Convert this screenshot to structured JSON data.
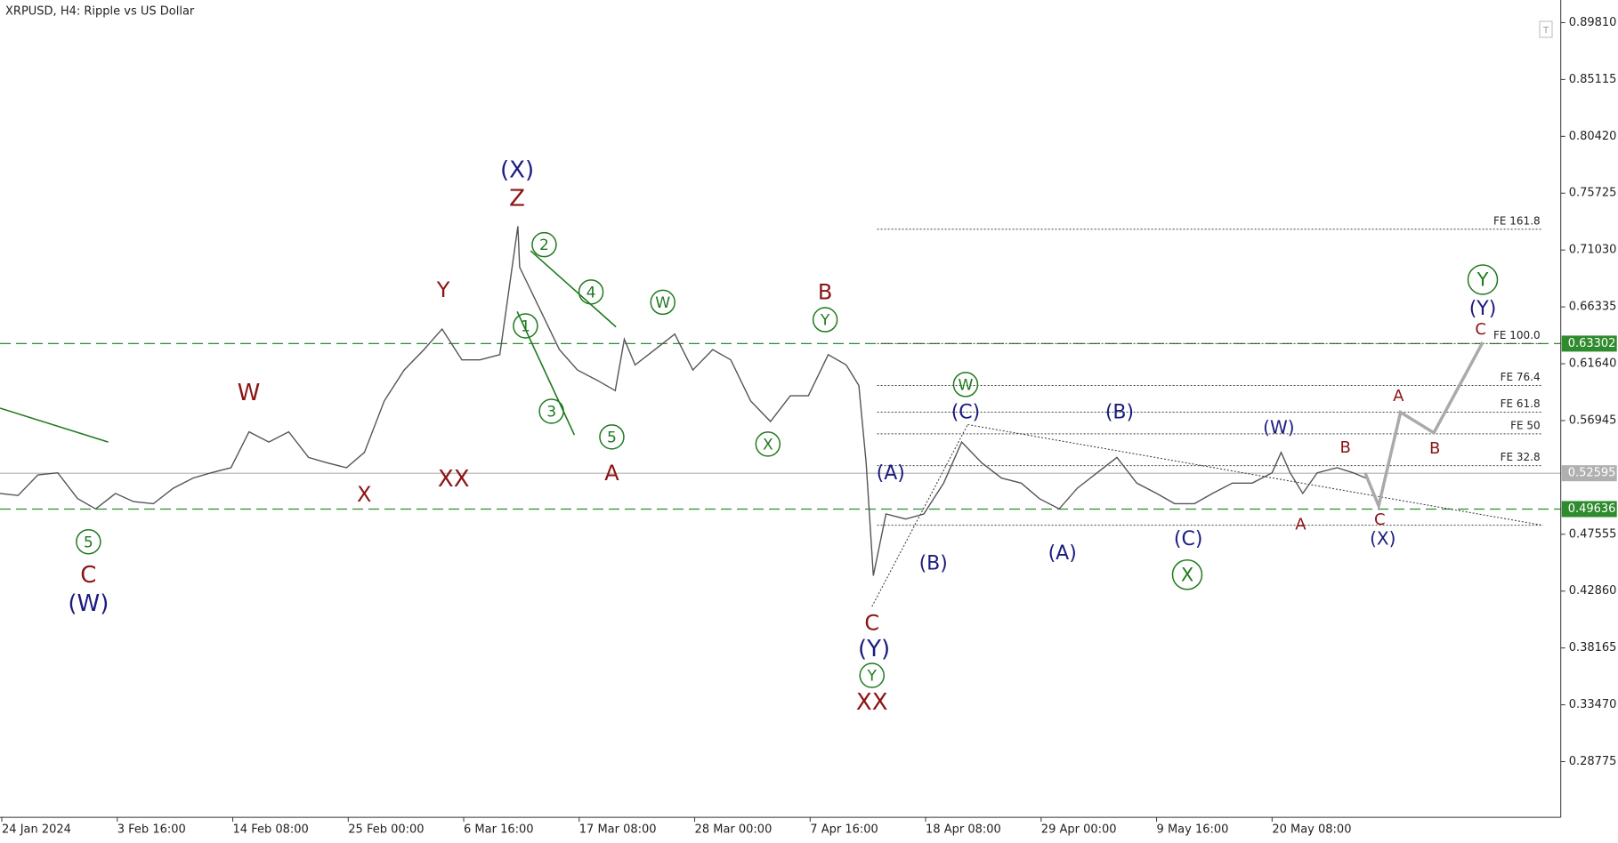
{
  "chart_data": {
    "type": "line",
    "title": "XRPUSD, H4:  Ripple vs US Dollar",
    "color": "#555555",
    "x": [
      0,
      10,
      21,
      32,
      43,
      53,
      64,
      74,
      85,
      96,
      107,
      117,
      128,
      138,
      149,
      160,
      171,
      181,
      192,
      202,
      213,
      224,
      235,
      245,
      256,
      266,
      277,
      287,
      288,
      299,
      310,
      320,
      331,
      341,
      346,
      352,
      363,
      374,
      384,
      395,
      405,
      416,
      427,
      438,
      448,
      459,
      469,
      476,
      480,
      484,
      491,
      502,
      512,
      523,
      533,
      544,
      555,
      566,
      576,
      587,
      597,
      608,
      619,
      630,
      641,
      651,
      662,
      672,
      683,
      694,
      705,
      710,
      715,
      722,
      730,
      741,
      750,
      757
    ],
    "values": [
      0.5093,
      0.5076,
      0.5246,
      0.5263,
      0.505,
      0.4965,
      0.5093,
      0.5025,
      0.5008,
      0.5135,
      0.522,
      0.5263,
      0.5305,
      0.5602,
      0.5517,
      0.5602,
      0.539,
      0.5347,
      0.5305,
      0.5432,
      0.5857,
      0.6112,
      0.6281,
      0.6451,
      0.6196,
      0.6196,
      0.6239,
      0.73,
      0.6961,
      0.6621,
      0.6281,
      0.6112,
      0.6027,
      0.5942,
      0.6366,
      0.6154,
      0.6281,
      0.6409,
      0.6112,
      0.6281,
      0.6196,
      0.5857,
      0.5687,
      0.5899,
      0.5899,
      0.6239,
      0.6154,
      0.5984,
      0.5347,
      0.4414,
      0.4923,
      0.4881,
      0.4923,
      0.5178,
      0.5517,
      0.5347,
      0.522,
      0.5178,
      0.505,
      0.4965,
      0.5135,
      0.5263,
      0.539,
      0.5178,
      0.5093,
      0.5008,
      0.5008,
      0.5093,
      0.5178,
      0.5178,
      0.5263,
      0.5432,
      0.5263,
      0.5093,
      0.5263,
      0.5305,
      0.5263,
      0.522
    ],
    "xlim": [
      0,
      865
    ],
    "xticks": [
      {
        "value": 1,
        "label": "24 Jan 2024"
      },
      {
        "value": 65,
        "label": "3 Feb 16:00"
      },
      {
        "value": 129,
        "label": "14 Feb 08:00"
      },
      {
        "value": 193,
        "label": "25 Feb 00:00"
      },
      {
        "value": 257,
        "label": "6 Mar 16:00"
      },
      {
        "value": 321,
        "label": "17 Mar 08:00"
      },
      {
        "value": 385,
        "label": "28 Mar 00:00"
      },
      {
        "value": 449,
        "label": "7 Apr 16:00"
      },
      {
        "value": 513,
        "label": "18 Apr 08:00"
      },
      {
        "value": 577,
        "label": "29 Apr 00:00"
      },
      {
        "value": 641,
        "label": "9 May 16:00"
      },
      {
        "value": 705,
        "label": "20 May 08:00"
      }
    ],
    "ylim": [
      0.2418,
      0.9168
    ],
    "yticks": [
      {
        "value": 0.8981,
        "label": "0.89810"
      },
      0.85115,
      {
        "value": 0.8042,
        "label": "0.80420"
      },
      0.75725,
      {
        "value": 0.7103,
        "label": "0.71030"
      },
      0.66335,
      {
        "value": 0.6164,
        "label": "0.61640"
      },
      0.56945,
      0.47555,
      {
        "value": 0.4286,
        "label": "0.42860"
      },
      0.38165,
      {
        "value": 0.3347,
        "label": "0.33470"
      },
      0.28775
    ],
    "levels": [
      {
        "value": 0.63302,
        "color": "#2e8b2e",
        "style": "dashed"
      },
      {
        "value": 0.52595,
        "color": "#b0b0b0",
        "style": "solid"
      },
      {
        "value": 0.49636,
        "color": "#2e8b2e",
        "style": "dashed"
      }
    ],
    "fib_levels": [
      {
        "label": "FE 161.8",
        "value": 0.7275
      },
      {
        "label": "FE 100.0",
        "value": 0.633
      },
      {
        "label": "FE 76.4",
        "value": 0.5984
      },
      {
        "label": "FE 61.8",
        "value": 0.5764
      },
      {
        "label": "FE 50",
        "value": 0.5585
      },
      {
        "label": "FE 32.8",
        "value": 0.5322
      }
    ],
    "extra_levels": [
      0.483
    ],
    "wave_labels": [
      {
        "text": "(X)",
        "color": "#1b1b80"
      },
      {
        "text": "Z",
        "color": "#8b1414"
      },
      {
        "text": "Y",
        "color": "#8b1414"
      },
      {
        "text": "XX",
        "color": "#8b1414"
      },
      {
        "text": "W",
        "color": "#8b1414"
      },
      {
        "text": "X",
        "color": "#8b1414"
      },
      {
        "text": "5",
        "color": "#1f7a1f",
        "circled": true
      },
      {
        "text": "C",
        "color": "#8b1414"
      },
      {
        "text": "(W)",
        "color": "#1b1b80"
      },
      {
        "text": "2",
        "color": "#1f7a1f",
        "circled": true
      },
      {
        "text": "4",
        "color": "#1f7a1f",
        "circled": true
      },
      {
        "text": "1",
        "color": "#1f7a1f",
        "circled": true
      },
      {
        "text": "3",
        "color": "#1f7a1f",
        "circled": true
      },
      {
        "text": "5",
        "color": "#1f7a1f",
        "circled": true
      },
      {
        "text": "A",
        "color": "#8b1414"
      },
      {
        "text": "W",
        "color": "#1f7a1f",
        "circled": true
      },
      {
        "text": "X",
        "color": "#1f7a1f",
        "circled": true
      },
      {
        "text": "B",
        "color": "#8b1414"
      },
      {
        "text": "Y",
        "color": "#1f7a1f",
        "circled": true
      },
      {
        "text": "(A)",
        "color": "#1b1b80"
      },
      {
        "text": "(B)",
        "color": "#1b1b80"
      },
      {
        "text": "C",
        "color": "#8b1414"
      },
      {
        "text": "(Y)",
        "color": "#1b1b80"
      },
      {
        "text": "Y",
        "color": "#1f7a1f",
        "circled": true
      },
      {
        "text": "XX",
        "color": "#8b1414"
      },
      {
        "text": "W",
        "color": "#1f7a1f",
        "circled": true
      },
      {
        "text": "(C)",
        "color": "#1b1b80"
      },
      {
        "text": "(B)",
        "color": "#1b1b80"
      },
      {
        "text": "(A)",
        "color": "#1b1b80"
      },
      {
        "text": "(C)",
        "color": "#1b1b80"
      },
      {
        "text": "X",
        "color": "#1f7a1f",
        "circled": true
      },
      {
        "text": "(W)",
        "color": "#1b1b80"
      },
      {
        "text": "B",
        "color": "#8b1414"
      },
      {
        "text": "A",
        "color": "#8b1414"
      },
      {
        "text": "C",
        "color": "#8b1414"
      },
      {
        "text": "(X)",
        "color": "#1b1b80"
      },
      {
        "text": "A",
        "color": "#8b1414"
      },
      {
        "text": "B",
        "color": "#8b1414"
      },
      {
        "text": "Y",
        "color": "#1f7a1f",
        "circled": true
      },
      {
        "text": "(Y)",
        "color": "#1b1b80"
      },
      {
        "text": "C",
        "color": "#8b1414"
      }
    ]
  }
}
